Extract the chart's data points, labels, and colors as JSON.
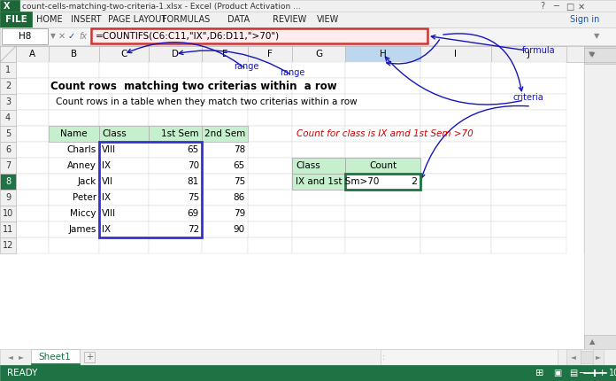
{
  "title_bar_text": "count-cells-matching-two-criteria-1.xlsx - Excel (Product Activation ...",
  "menu_items": [
    "FILE",
    "HOME",
    "INSERT",
    "PAGE LAYOUT",
    "FORMULAS",
    "DATA",
    "REVIEW",
    "VIEW"
  ],
  "cell_ref": "H8",
  "formula": "=COUNTIFS(C6:C11,\"IX\",D6:D11,\">70\")",
  "col_headers": [
    "A",
    "B",
    "C",
    "D",
    "E",
    "F",
    "G",
    "H",
    "I",
    "J"
  ],
  "bold_title": "Count rows  matching two criterias within  a row",
  "subtitle": "Count rows in a table when they match two criterias within a row",
  "table_headers": [
    "Name",
    "Class",
    "1st Sem",
    "2nd Sem"
  ],
  "table_data": [
    [
      "Charls",
      "VIII",
      "65",
      "78"
    ],
    [
      "Anney",
      "IX",
      "70",
      "65"
    ],
    [
      "Jack",
      "VII",
      "81",
      "75"
    ],
    [
      "Peter",
      "IX",
      "75",
      "86"
    ],
    [
      "Miccy",
      "VIII",
      "69",
      "79"
    ],
    [
      "James",
      "IX",
      "72",
      "90"
    ]
  ],
  "right_label": "Count for class is IX amd 1st Sem >70",
  "right_table_headers": [
    "Class",
    "Count"
  ],
  "right_table_data": [
    "IX and 1st Sm>70",
    "2"
  ],
  "bg_color": "#FFFFFF",
  "header_bg": "#C6EFCE",
  "formula_box_color": "#E05050",
  "arrow_color": "#1515BB",
  "status_bar_bg": "#1F7244",
  "sheet_tab_color": "#1F7244",
  "right_header_bg": "#C6EFCE",
  "count_cell_border": "#1F7244",
  "blue_sel_color": "#3333CC",
  "row_sel_color": "#217346",
  "h_col_bg": "#BDD7EE"
}
